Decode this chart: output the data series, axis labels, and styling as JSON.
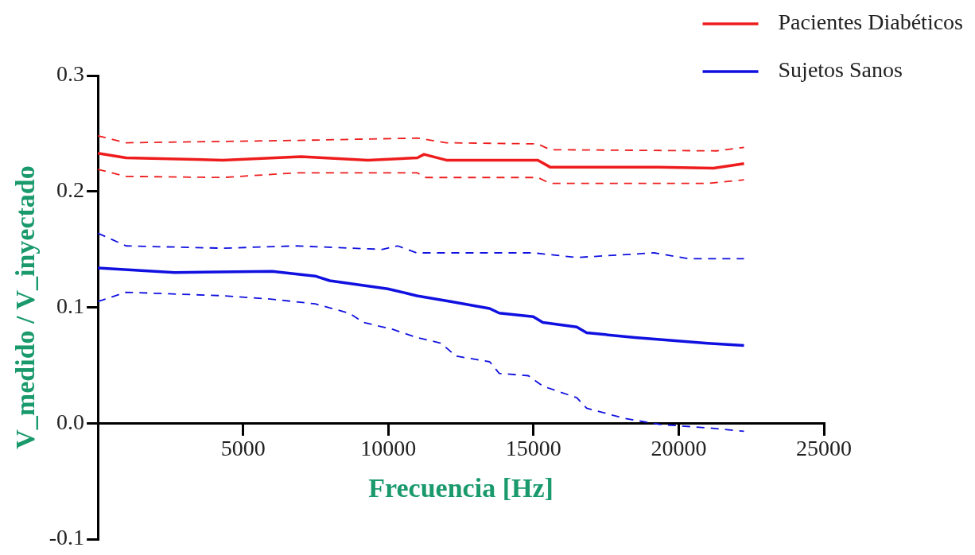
{
  "chart_data": {
    "type": "line",
    "xlabel": "Frecuencia [Hz]",
    "ylabel": "V_medido / V_inyectado",
    "xlim": [
      0,
      25000
    ],
    "xticks": [
      5000,
      10000,
      15000,
      20000,
      25000
    ],
    "ylim": [
      -0.1,
      0.3
    ],
    "yticks": [
      {
        "value": -0.1,
        "label": "-0.1"
      },
      {
        "value": 0,
        "label": "0.0"
      },
      {
        "value": 0.1,
        "label": "0.1"
      },
      {
        "value": 0.2,
        "label": "0.2"
      },
      {
        "value": 0.3,
        "label": "0.3"
      }
    ],
    "grid": false,
    "legend": "top right",
    "series": [
      {
        "name": "Pacientes Diabéticos",
        "color": "#ee1c1c",
        "line_style": "solid",
        "x": [
          0,
          970,
          4300,
          7000,
          9300,
          11000,
          11230,
          12000,
          15150,
          15570,
          19300,
          21200,
          22250
        ],
        "values": [
          0.233,
          0.229,
          0.227,
          0.23,
          0.227,
          0.229,
          0.232,
          0.227,
          0.227,
          0.221,
          0.221,
          0.22,
          0.224
        ]
      },
      {
        "color": "#ee1c1c",
        "line_style": "dashed",
        "x": [
          0,
          970,
          6800,
          11000,
          12000,
          15150,
          15570,
          21300,
          22250
        ],
        "values": [
          0.248,
          0.242,
          0.244,
          0.246,
          0.242,
          0.241,
          0.236,
          0.235,
          0.238
        ]
      },
      {
        "color": "#ee1c1c",
        "line_style": "dashed",
        "x": [
          0,
          970,
          4300,
          6800,
          11000,
          11300,
          15150,
          15570,
          21000,
          22250
        ],
        "values": [
          0.219,
          0.213,
          0.212,
          0.216,
          0.216,
          0.212,
          0.212,
          0.207,
          0.207,
          0.21
        ]
      },
      {
        "name": "Sujetos Sanos",
        "color": "#1010e0",
        "line_style": "solid",
        "x": [
          0,
          2640,
          6000,
          7480,
          7980,
          9980,
          10650,
          10980,
          12150,
          13490,
          13820,
          14990,
          15320,
          16490,
          16830,
          18490,
          21000,
          22250
        ],
        "values": [
          0.134,
          0.13,
          0.131,
          0.127,
          0.123,
          0.116,
          0.112,
          0.11,
          0.105,
          0.099,
          0.095,
          0.092,
          0.087,
          0.083,
          0.078,
          0.074,
          0.069,
          0.067
        ]
      },
      {
        "color": "#1010e0",
        "line_style": "dashed",
        "x": [
          0,
          970,
          4300,
          6800,
          9800,
          10320,
          10980,
          15000,
          16500,
          19160,
          20330,
          22250
        ],
        "values": [
          0.164,
          0.153,
          0.151,
          0.153,
          0.15,
          0.153,
          0.147,
          0.147,
          0.143,
          0.147,
          0.142,
          0.142
        ]
      },
      {
        "color": "#1010e0",
        "line_style": "dashed",
        "x": [
          0,
          970,
          4300,
          6000,
          7480,
          8650,
          9150,
          10150,
          10980,
          11820,
          12320,
          13490,
          13820,
          14820,
          15320,
          16490,
          16830,
          18160,
          19330,
          21000,
          22250
        ],
        "values": [
          0.105,
          0.113,
          0.11,
          0.107,
          0.103,
          0.095,
          0.087,
          0.081,
          0.074,
          0.069,
          0.058,
          0.053,
          0.043,
          0.041,
          0.032,
          0.022,
          0.013,
          0.004,
          -0.001,
          -0.004,
          -0.007
        ]
      }
    ]
  }
}
